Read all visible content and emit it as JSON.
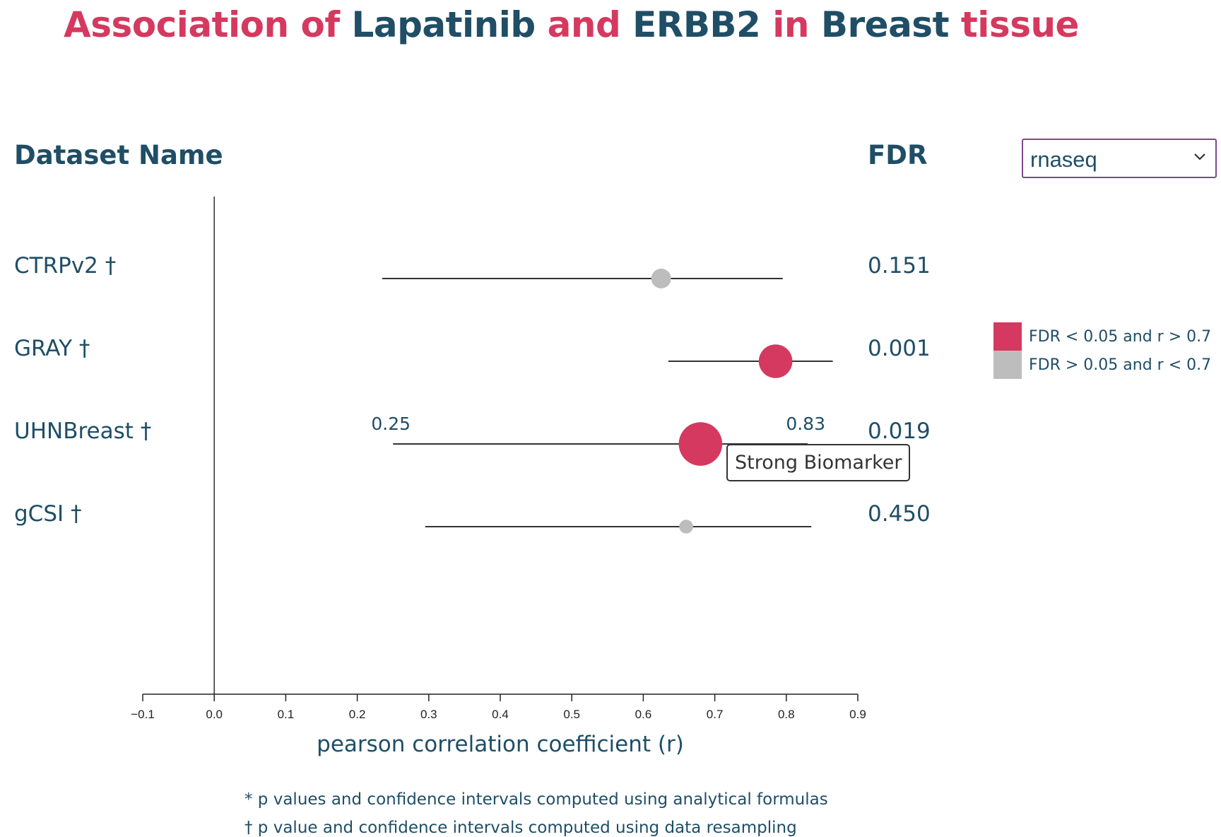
{
  "title": {
    "parts": [
      {
        "text": "Association of ",
        "color": "red"
      },
      {
        "text": "Lapatinib",
        "color": "blue"
      },
      {
        "text": " and ",
        "color": "red"
      },
      {
        "text": "ERBB2",
        "color": "blue"
      },
      {
        "text": " in ",
        "color": "red"
      },
      {
        "text": "Breast",
        "color": "blue"
      },
      {
        "text": " tissue",
        "color": "red"
      }
    ]
  },
  "headers": {
    "dataset": "Dataset Name",
    "fdr": "FDR"
  },
  "select": {
    "value": "rnaseq",
    "icon": "chevron-down-icon"
  },
  "colors": {
    "significant": "#d5395f",
    "nonsignificant": "#bdbdbd",
    "text": "#1f4e66",
    "title_red": "#d5395f"
  },
  "legend": [
    {
      "label": "FDR < 0.05 and r > 0.7",
      "color": "#d5395f"
    },
    {
      "label": "FDR > 0.05 and r < 0.7",
      "color": "#bdbdbd"
    }
  ],
  "chart_data": {
    "type": "scatter",
    "xlabel": "pearson correlation coefficient (r)",
    "xlim": [
      -0.1,
      0.9
    ],
    "xticks": [
      "−0.1",
      "0.0",
      "0.1",
      "0.2",
      "0.3",
      "0.4",
      "0.5",
      "0.6",
      "0.7",
      "0.8",
      "0.9"
    ],
    "rows": [
      {
        "dataset": "CTRPv2 †",
        "r": 0.625,
        "lower": 0.235,
        "upper": 0.795,
        "fdr": "0.151",
        "significant": false,
        "weight": 1.0
      },
      {
        "dataset": "GRAY †",
        "r": 0.785,
        "lower": 0.635,
        "upper": 0.865,
        "fdr": "0.001",
        "significant": true,
        "weight": 1.7
      },
      {
        "dataset": "UHNBreast †",
        "r": 0.68,
        "lower": 0.25,
        "upper": 0.83,
        "fdr": "0.019",
        "significant": true,
        "weight": 2.2
      },
      {
        "dataset": "gCSI †",
        "r": 0.66,
        "lower": 0.295,
        "upper": 0.835,
        "fdr": "0.450",
        "significant": false,
        "weight": 0.7
      }
    ],
    "hover": {
      "row": 2,
      "ci_labels": [
        "0.25",
        "0.83"
      ],
      "tooltip": "Strong Biomarker"
    }
  },
  "footnotes": [
    "* p values and confidence intervals computed using analytical formulas",
    "† p value and confidence intervals computed using data resampling"
  ]
}
